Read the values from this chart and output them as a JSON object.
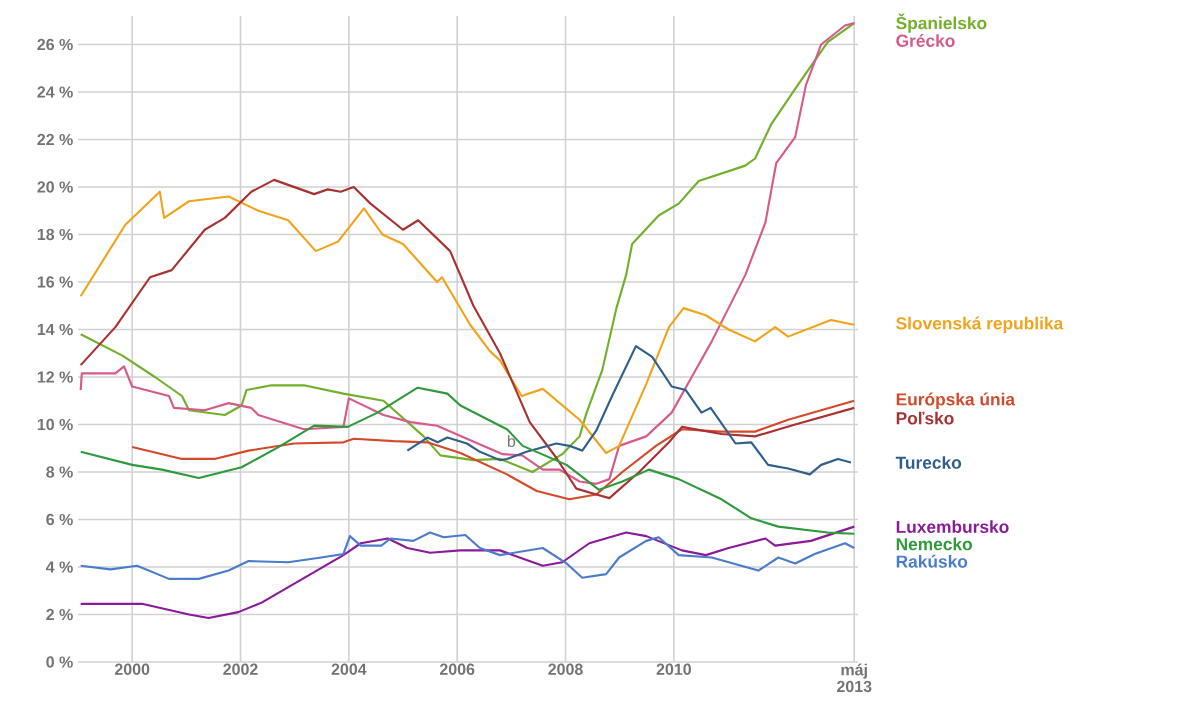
{
  "chart_data": {
    "type": "line",
    "xlim": [
      1999,
      2013.4
    ],
    "ylim": [
      0,
      27.2
    ],
    "xticks": [
      2000,
      2002,
      2004,
      2006,
      2008,
      2010,
      {
        "value": 2013.33,
        "label": "máj 2013"
      }
    ],
    "yticks": [
      {
        "value": 0,
        "label": "0 %"
      },
      {
        "value": 2,
        "label": "2 %"
      },
      {
        "value": 4,
        "label": "4 %"
      },
      {
        "value": 6,
        "label": "6 %"
      },
      {
        "value": 8,
        "label": "8 %"
      },
      {
        "value": 10,
        "label": "10 %"
      },
      {
        "value": 12,
        "label": "12 %"
      },
      {
        "value": 14,
        "label": "14 %"
      },
      {
        "value": 16,
        "label": "16 %"
      },
      {
        "value": 18,
        "label": "18 %"
      },
      {
        "value": 20,
        "label": "20 %"
      },
      {
        "value": 22,
        "label": "22 %"
      },
      {
        "value": 24,
        "label": "24 %"
      },
      {
        "value": 26,
        "label": "26 %"
      }
    ],
    "grid": true,
    "annotations": [
      {
        "text": "b",
        "x": 2007.0,
        "y": 9.3
      }
    ],
    "series": [
      {
        "name": "Španielsko",
        "color": "#72b02c",
        "x": [
          1999.05,
          1999.82,
          2000.42,
          2000.92,
          2001.05,
          2001.71,
          2002.02,
          2002.11,
          2002.57,
          2003.17,
          2003.9,
          2004.64,
          2005.38,
          2005.69,
          2006.3,
          2006.79,
          2007.39,
          2007.94,
          2008.26,
          2008.39,
          2008.68,
          2008.94,
          2009.12,
          2009.23,
          2009.72,
          2010.09,
          2010.46,
          2011.32,
          2011.5,
          2011.8,
          2012.29,
          2012.84,
          2013.33
        ],
        "values": [
          13.8,
          12.9,
          12.0,
          11.2,
          10.6,
          10.4,
          10.8,
          11.45,
          11.65,
          11.65,
          11.3,
          11.0,
          9.5,
          8.7,
          8.5,
          8.55,
          8.0,
          8.75,
          9.5,
          10.5,
          12.3,
          14.9,
          16.3,
          17.6,
          18.8,
          19.3,
          20.25,
          20.9,
          21.2,
          22.65,
          24.3,
          26.1,
          26.9
        ]
      },
      {
        "name": "Grécko",
        "color": "#d65a8a",
        "x": [
          1999.05,
          1999.07,
          1999.69,
          1999.85,
          2000.0,
          2000.68,
          2000.77,
          2001.34,
          2001.78,
          2002.2,
          2002.33,
          2003.17,
          2003.9,
          2004.0,
          2004.64,
          2005.14,
          2005.63,
          2006.18,
          2006.84,
          2007.2,
          2007.58,
          2007.89,
          2008.26,
          2008.57,
          2008.81,
          2008.99,
          2009.49,
          2009.96,
          2010.33,
          2010.7,
          2011.01,
          2011.32,
          2011.69,
          2011.89,
          2012.24,
          2012.44,
          2012.72,
          2013.16,
          2013.33
        ],
        "values": [
          11.45,
          12.15,
          12.15,
          12.45,
          11.6,
          11.2,
          10.7,
          10.6,
          10.9,
          10.7,
          10.4,
          9.8,
          9.9,
          11.1,
          10.4,
          10.1,
          9.95,
          9.4,
          8.75,
          8.7,
          8.1,
          8.1,
          7.6,
          7.5,
          7.7,
          9.1,
          9.5,
          10.5,
          12.0,
          13.5,
          14.9,
          16.3,
          18.5,
          21.0,
          22.1,
          24.3,
          26.0,
          26.8,
          26.9
        ]
      },
      {
        "name": "Slovenská republika",
        "color": "#f2a31c",
        "x": [
          1999.05,
          1999.87,
          2000.51,
          2000.59,
          2001.05,
          2001.78,
          2002.33,
          2002.88,
          2003.39,
          2003.8,
          2004.28,
          2004.62,
          2005.0,
          2005.63,
          2005.72,
          2006.24,
          2006.6,
          2006.79,
          2007.19,
          2007.58,
          2008.26,
          2008.75,
          2008.99,
          2009.49,
          2009.91,
          2010.18,
          2010.59,
          2011.01,
          2011.5,
          2011.87,
          2012.11,
          2012.9,
          2013.33
        ],
        "values": [
          15.4,
          18.4,
          19.8,
          18.7,
          19.4,
          19.6,
          19.0,
          18.6,
          17.3,
          17.7,
          19.1,
          18.0,
          17.6,
          16.0,
          16.2,
          14.2,
          13.1,
          12.7,
          11.2,
          11.5,
          10.2,
          8.8,
          9.1,
          11.7,
          14.1,
          14.9,
          14.6,
          14.0,
          13.5,
          14.1,
          13.7,
          14.4,
          14.2
        ]
      },
      {
        "name": "Európska únia",
        "color": "#d24a2a",
        "x": [
          2000.0,
          2000.92,
          2001.52,
          2002.15,
          2002.99,
          2003.9,
          2004.09,
          2004.83,
          2005.45,
          2006.06,
          2006.3,
          2006.92,
          2007.47,
          2008.07,
          2008.57,
          2009.05,
          2009.67,
          2010.15,
          2010.88,
          2011.5,
          2012.11,
          2013.33
        ],
        "values": [
          9.05,
          8.55,
          8.55,
          8.9,
          9.2,
          9.25,
          9.4,
          9.3,
          9.25,
          8.8,
          8.55,
          7.9,
          7.2,
          6.85,
          7.05,
          8.0,
          9.1,
          9.8,
          9.7,
          9.7,
          10.2,
          11.0
        ]
      },
      {
        "name": "Poľsko",
        "color": "#a83232",
        "x": [
          1999.05,
          1999.69,
          2000.33,
          2000.73,
          2001.34,
          2001.71,
          2002.2,
          2002.62,
          2003.36,
          2003.61,
          2003.85,
          2004.09,
          2004.4,
          2005.0,
          2005.28,
          2005.87,
          2006.3,
          2006.79,
          2007.34,
          2007.83,
          2008.2,
          2008.57,
          2008.81,
          2009.36,
          2009.91,
          2010.15,
          2010.88,
          2011.5,
          2012.24,
          2013.33
        ],
        "values": [
          12.5,
          14.1,
          16.2,
          16.5,
          18.2,
          18.7,
          19.8,
          20.3,
          19.7,
          19.9,
          19.8,
          20.0,
          19.3,
          18.2,
          18.6,
          17.3,
          15.0,
          13.0,
          10.1,
          8.6,
          7.3,
          7.05,
          6.9,
          8.0,
          9.25,
          9.9,
          9.6,
          9.5,
          10.0,
          10.7
        ]
      },
      {
        "name": "Turecko",
        "color": "#2f5f8c",
        "x": [
          2005.08,
          2005.45,
          2005.64,
          2005.82,
          2006.18,
          2006.42,
          2006.79,
          2006.92,
          2007.28,
          2007.83,
          2008.07,
          2008.31,
          2008.57,
          2008.86,
          2009.3,
          2009.6,
          2009.96,
          2010.22,
          2010.51,
          2010.68,
          2011.14,
          2011.43,
          2011.74,
          2012.11,
          2012.51,
          2012.72,
          2013.03,
          2013.27
        ],
        "values": [
          8.9,
          9.45,
          9.25,
          9.45,
          9.2,
          8.85,
          8.5,
          8.55,
          8.85,
          9.2,
          9.1,
          8.9,
          9.75,
          11.2,
          13.3,
          12.85,
          11.6,
          11.45,
          10.5,
          10.7,
          9.2,
          9.25,
          8.3,
          8.15,
          7.9,
          8.3,
          8.55,
          8.4
        ]
      },
      {
        "name": "Luxembursko",
        "color": "#8b1a9b",
        "x": [
          1999.05,
          2000.18,
          2001.05,
          2001.41,
          2001.96,
          2002.39,
          2003.9,
          2004.22,
          2004.72,
          2005.08,
          2005.5,
          2006.06,
          2006.79,
          2007.58,
          2007.94,
          2008.44,
          2009.12,
          2009.49,
          2010.15,
          2010.59,
          2011.01,
          2011.69,
          2011.87,
          2012.53,
          2013.33
        ],
        "values": [
          2.45,
          2.45,
          2.0,
          1.85,
          2.1,
          2.5,
          4.5,
          5.0,
          5.2,
          4.8,
          4.6,
          4.7,
          4.7,
          4.05,
          4.2,
          5.0,
          5.45,
          5.3,
          4.7,
          4.5,
          4.8,
          5.2,
          4.9,
          5.1,
          5.7
        ]
      },
      {
        "name": "Nemecko",
        "color": "#2f9a3c",
        "x": [
          1999.05,
          2000.0,
          2000.55,
          2001.23,
          2002.02,
          2002.7,
          2003.36,
          2003.98,
          2004.53,
          2005.27,
          2005.82,
          2006.06,
          2006.79,
          2006.92,
          2007.21,
          2008.02,
          2008.62,
          2009.05,
          2009.54,
          2010.09,
          2010.88,
          2011.43,
          2011.93,
          2012.84,
          2013.33
        ],
        "values": [
          8.85,
          8.3,
          8.1,
          7.75,
          8.2,
          9.05,
          9.95,
          9.9,
          10.5,
          11.55,
          11.3,
          10.8,
          9.95,
          9.8,
          9.1,
          8.3,
          7.25,
          7.6,
          8.1,
          7.7,
          6.85,
          6.05,
          5.7,
          5.45,
          5.4
        ]
      },
      {
        "name": "Rakúsko",
        "color": "#4a7ccc",
        "x": [
          1999.05,
          1999.6,
          2000.09,
          2000.68,
          2001.23,
          2001.78,
          2002.15,
          2002.88,
          2003.49,
          2003.9,
          2004.02,
          2004.22,
          2004.6,
          2004.77,
          2005.19,
          2005.5,
          2005.75,
          2006.15,
          2006.42,
          2006.79,
          2007.58,
          2008.02,
          2008.31,
          2008.75,
          2008.99,
          2009.49,
          2009.72,
          2010.09,
          2010.7,
          2011.56,
          2011.93,
          2012.24,
          2012.6,
          2013.16,
          2013.33
        ],
        "values": [
          4.05,
          3.9,
          4.05,
          3.5,
          3.5,
          3.85,
          4.25,
          4.2,
          4.4,
          4.55,
          5.3,
          4.9,
          4.9,
          5.2,
          5.1,
          5.45,
          5.25,
          5.35,
          4.8,
          4.5,
          4.8,
          4.15,
          3.55,
          3.7,
          4.4,
          5.1,
          5.25,
          4.5,
          4.4,
          3.85,
          4.4,
          4.15,
          4.55,
          5.0,
          4.8
        ]
      }
    ]
  }
}
